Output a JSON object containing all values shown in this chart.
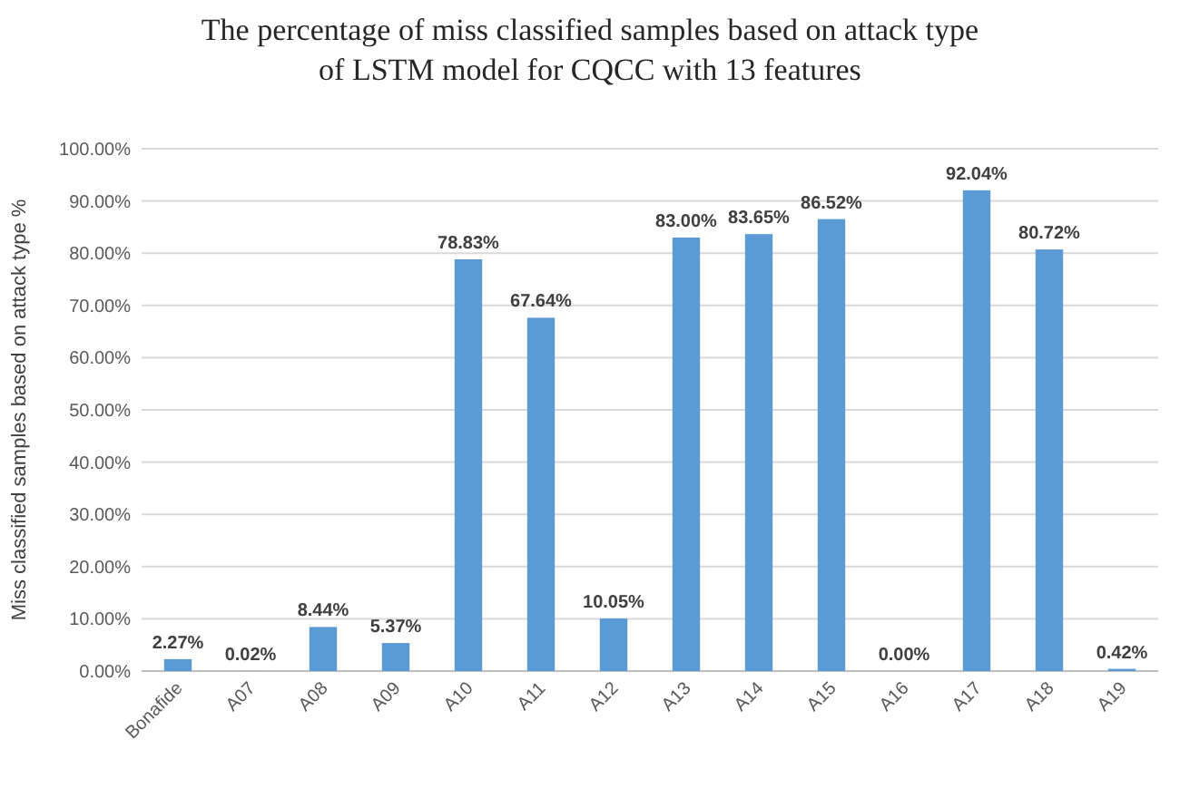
{
  "chart_data": {
    "type": "bar",
    "title": "The percentage of miss classified samples based on attack type of LSTM model for CQCC with 13 features",
    "ylabel": "Miss classified samples based on attack type %",
    "categories": [
      "Bonafide",
      "A07",
      "A08",
      "A09",
      "A10",
      "A11",
      "A12",
      "A13",
      "A14",
      "A15",
      "A16",
      "A17",
      "A18",
      "A19"
    ],
    "values": [
      2.27,
      0.02,
      8.44,
      5.37,
      78.83,
      67.64,
      10.05,
      83.0,
      83.65,
      86.52,
      0.0,
      92.04,
      80.72,
      0.42
    ],
    "value_labels": [
      "2.27%",
      "0.02%",
      "8.44%",
      "5.37%",
      "78.83%",
      "67.64%",
      "10.05%",
      "83.00%",
      "83.65%",
      "86.52%",
      "0.00%",
      "92.04%",
      "80.72%",
      "0.42%"
    ],
    "color": "#5b9bd5",
    "ylim": [
      0,
      100
    ],
    "yticks": [
      {
        "value": 0,
        "label": "0.00%"
      },
      {
        "value": 10,
        "label": "10.00%"
      },
      {
        "value": 20,
        "label": "20.00%"
      },
      {
        "value": 30,
        "label": "30.00%"
      },
      {
        "value": 40,
        "label": "40.00%"
      },
      {
        "value": 50,
        "label": "50.00%"
      },
      {
        "value": 60,
        "label": "60.00%"
      },
      {
        "value": 70,
        "label": "70.00%"
      },
      {
        "value": 80,
        "label": "80.00%"
      },
      {
        "value": 90,
        "label": "90.00%"
      },
      {
        "value": 100,
        "label": "100.00%"
      }
    ],
    "grid": "y"
  }
}
